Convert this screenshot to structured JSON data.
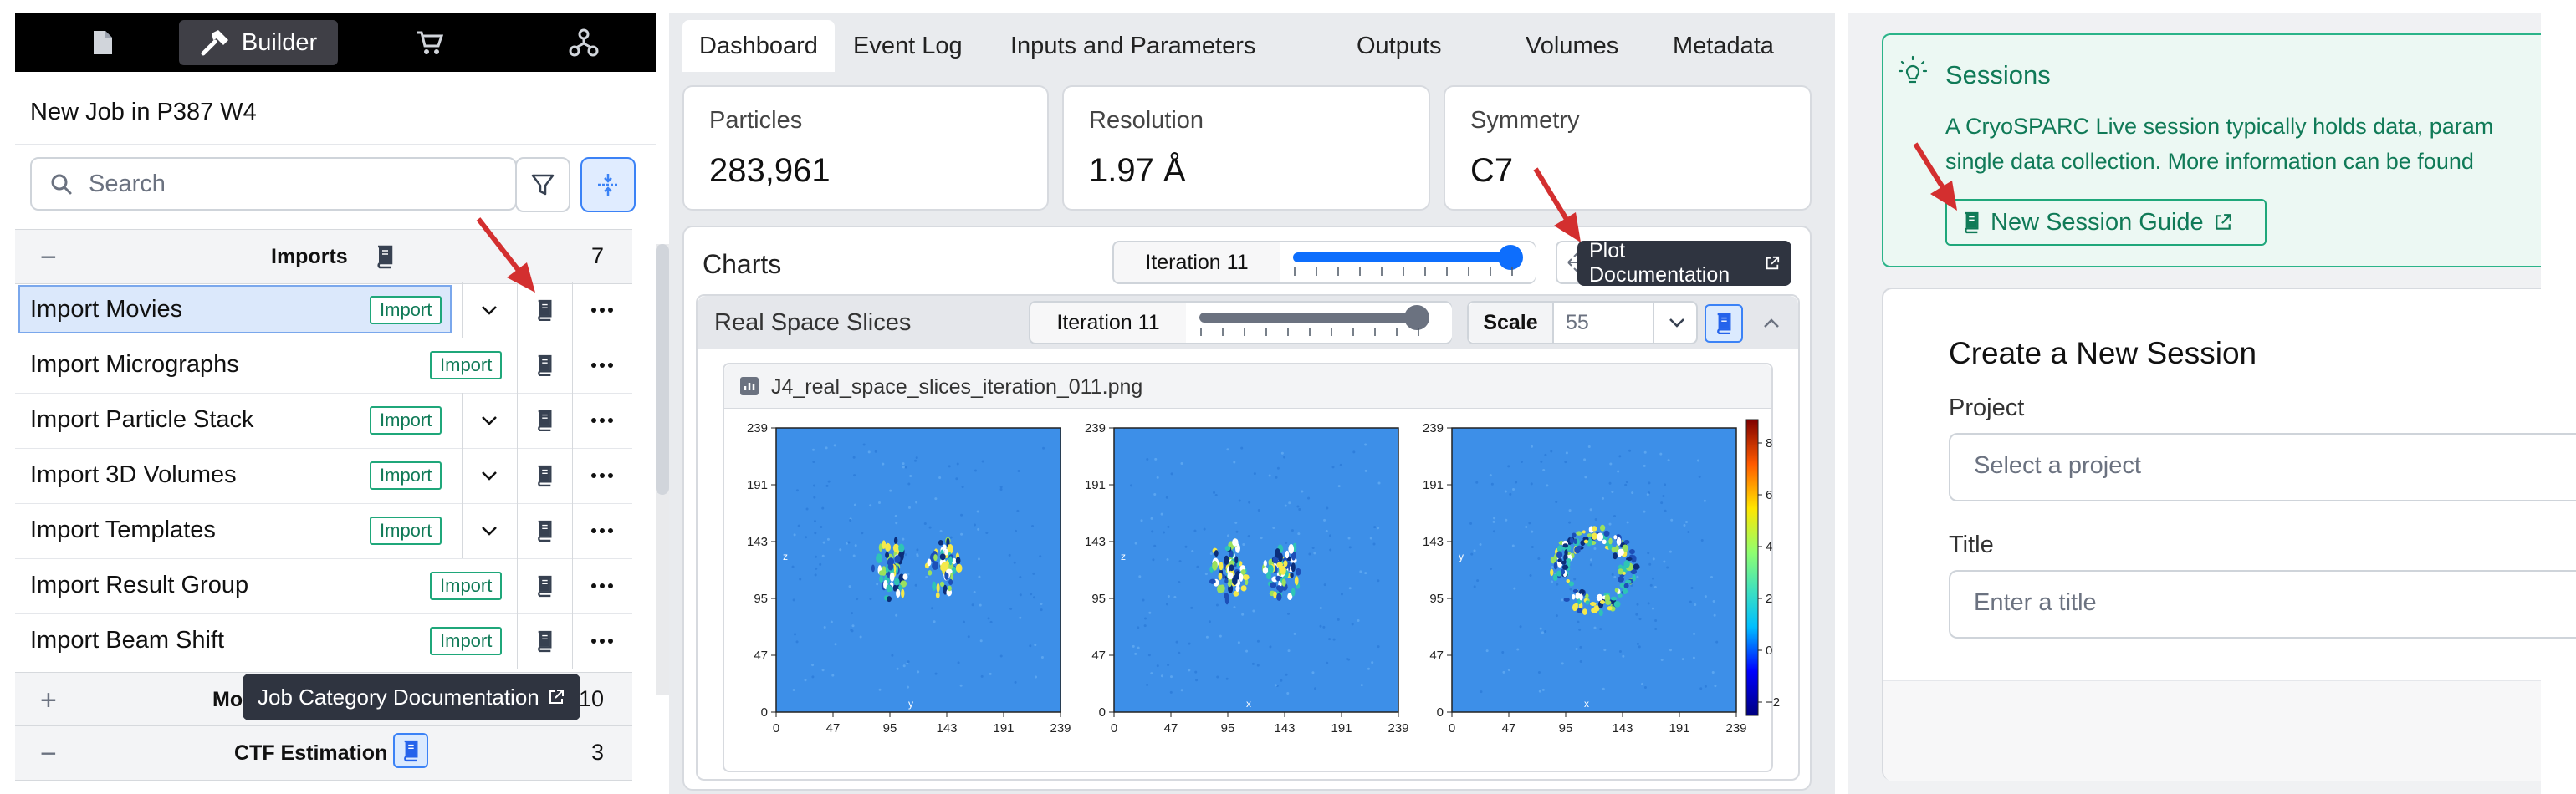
{
  "builder": {
    "topbar": {
      "builder_label": "Builder",
      "icons": [
        "document-icon",
        "hammer-icon",
        "cart-icon",
        "network-icon"
      ]
    },
    "job_title": "New Job in P387 W4",
    "search": {
      "placeholder": "Search"
    },
    "categories": [
      {
        "sign": "−",
        "name": "Imports",
        "count": "7"
      },
      {
        "sign": "+",
        "name": "Mo",
        "count": "10"
      },
      {
        "sign": "−",
        "name": "CTF Estimation",
        "count": "3"
      }
    ],
    "jobs": [
      {
        "name": "Import Movies",
        "badge": "Import",
        "selected": true,
        "has_chevron": true
      },
      {
        "name": "Import Micrographs",
        "badge": "Import",
        "selected": false,
        "has_chevron": false
      },
      {
        "name": "Import Particle Stack",
        "badge": "Import",
        "selected": false,
        "has_chevron": true
      },
      {
        "name": "Import 3D Volumes",
        "badge": "Import",
        "selected": false,
        "has_chevron": true
      },
      {
        "name": "Import Templates",
        "badge": "Import",
        "selected": false,
        "has_chevron": true
      },
      {
        "name": "Import Result Group",
        "badge": "Import",
        "selected": false,
        "has_chevron": false
      },
      {
        "name": "Import Beam Shift",
        "badge": "Import",
        "selected": false,
        "has_chevron": false
      }
    ],
    "tooltip": "Job Category Documentation"
  },
  "job": {
    "tabs": [
      "Dashboard",
      "Event Log",
      "Inputs and Parameters",
      "Outputs",
      "Volumes",
      "Metadata"
    ],
    "active_tab": "Dashboard",
    "stats": [
      {
        "label": "Particles",
        "value": "283,961"
      },
      {
        "label": "Resolution",
        "value": "1.97 Å"
      },
      {
        "label": "Symmetry",
        "value": "C7"
      }
    ],
    "charts": {
      "title": "Charts",
      "iteration_label": "Iteration 11",
      "slider_fraction": 1.0
    },
    "tooltip": "Plot Documentation",
    "slices": {
      "title": "Real Space Slices",
      "iteration_label": "Iteration 11",
      "slider_fraction": 1.0,
      "scale_label": "Scale",
      "scale_value": "55",
      "filename": "J4_real_space_slices_iteration_011.png",
      "tick_labels": [
        "239",
        "191",
        "143",
        "95",
        "47",
        "0"
      ],
      "x_tick_labels": [
        "0",
        "47",
        "95",
        "143",
        "191",
        "239"
      ],
      "panel_axis_labels": [
        {
          "left": "z",
          "bottom": "y"
        },
        {
          "left": "z",
          "bottom": "x"
        },
        {
          "left": "y",
          "bottom": "x"
        }
      ],
      "colorbar_ticks": [
        "8",
        "6",
        "4",
        "2",
        "0",
        "−2"
      ]
    }
  },
  "live": {
    "sessions": {
      "title": "Sessions",
      "text_line1": "A CryoSPARC Live session typically holds data, param",
      "text_line2": "single data collection. More information can be found",
      "guide_button": "New Session Guide"
    },
    "create": {
      "title": "Create a New Session",
      "project_label": "Project",
      "project_placeholder": "Select a project",
      "title_label": "Title",
      "title_placeholder": "Enter a title"
    }
  },
  "colors": {
    "accent_blue": "#3b82f6",
    "import_green": "#1fa77a",
    "annotation_red": "#d32f2f",
    "map_background": "#3d8fe8"
  }
}
